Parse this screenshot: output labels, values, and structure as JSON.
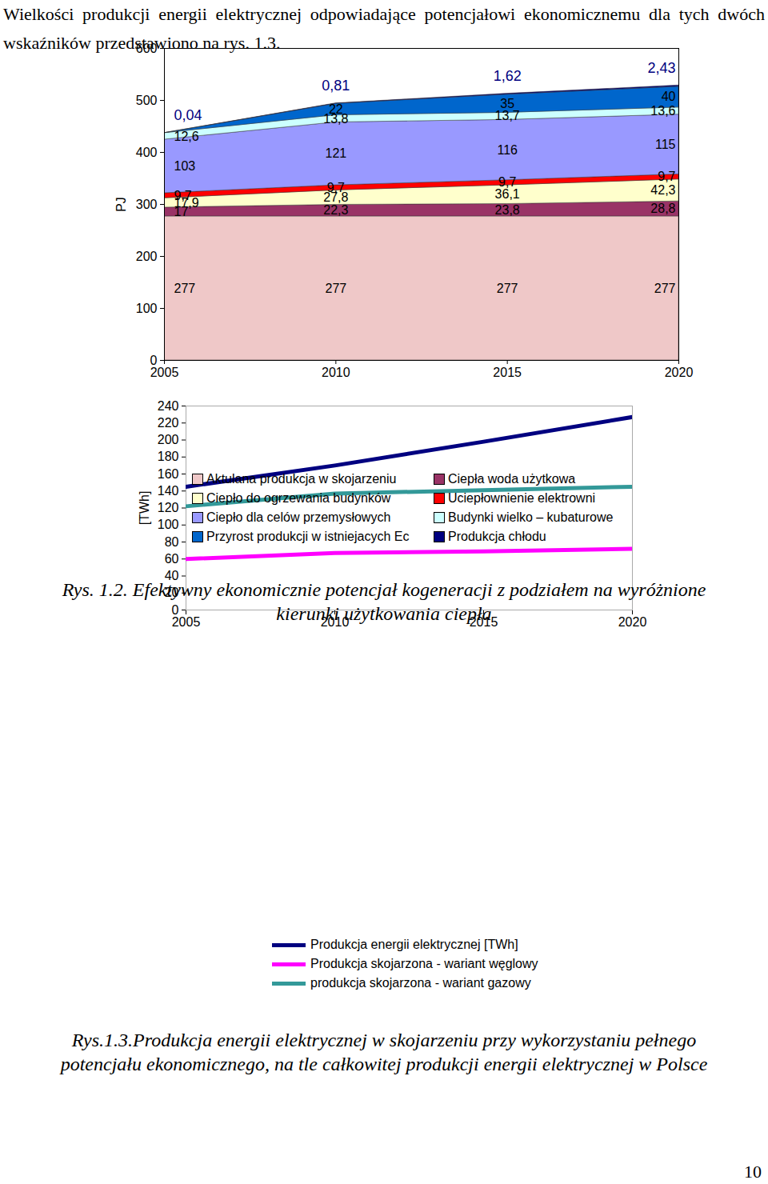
{
  "header_text": "Wielkości produkcji energii elektrycznej odpowiadające potencjałowi ekonomicznemu dla tych dwóch wskaźników przedstawiono na rys. 1.3.",
  "chart_data": [
    {
      "type": "area",
      "stacked": true,
      "data_labels": true,
      "legend": "bottom",
      "grid": false,
      "title": "Rys. 1.2. Efektywny ekonomicznie potencjał kogeneracji z podziałem na wyróżnione kierunki użytkowania ciepła",
      "y_label": "PJ",
      "x": [
        2005,
        2010,
        2015,
        2020
      ],
      "xlim": [
        2005,
        2020
      ],
      "xticks": [
        2005,
        2010,
        2015,
        2020
      ],
      "ylim": [
        0,
        600
      ],
      "yticks": [
        0,
        100,
        200,
        300,
        400,
        500,
        600
      ],
      "series": [
        {
          "name": "Aktulana produkcja w skojarzeniu",
          "color": "#efc8c8",
          "values": [
            277,
            277,
            277,
            277
          ],
          "value_labels": [
            "277",
            "277",
            "277",
            "277"
          ]
        },
        {
          "name": "Ciepła woda użytkowa",
          "color": "#993366",
          "values": [
            17,
            22.3,
            23.8,
            28.8
          ],
          "value_labels": [
            "17",
            "22,3",
            "23,8",
            "28,8"
          ]
        },
        {
          "name": "Ciepło do ogrzewania budynków",
          "color": "#ffffcc",
          "values": [
            17.9,
            27.8,
            36.1,
            42.3
          ],
          "value_labels": [
            "17,9",
            "27,8",
            "36,1",
            "42,3"
          ]
        },
        {
          "name": "Uciepłownienie elektrowni",
          "color": "#ff0000",
          "values": [
            9.7,
            9.7,
            9.7,
            9.7
          ],
          "value_labels": [
            "9,7",
            "9,7",
            "9,7",
            "9,7"
          ]
        },
        {
          "name": "Ciepło dla celów przemysłowych",
          "color": "#9999ff",
          "values": [
            103,
            121,
            116,
            115
          ],
          "value_labels": [
            "103",
            "121",
            "116",
            "115"
          ]
        },
        {
          "name": "Budynki wielko – kubaturowe",
          "color": "#ccffff",
          "values": [
            12.6,
            13.8,
            13.7,
            13.6
          ],
          "value_labels": [
            "12,6",
            "13,8",
            "13,7",
            "13,6"
          ]
        },
        {
          "name": "Przyrost produkcji w istniejacych Ec",
          "color": "#0066cc",
          "values": [
            0,
            22,
            35,
            40
          ],
          "value_labels": [
            null,
            "22",
            "35",
            "40"
          ]
        },
        {
          "name": "Produkcja chłodu",
          "color": "#000080",
          "values": [
            0.04,
            0.81,
            1.62,
            2.43
          ],
          "value_labels": [
            "0,04",
            "0,81",
            "1,62",
            "2,43"
          ]
        }
      ]
    },
    {
      "type": "line",
      "legend": "bottom",
      "grid": false,
      "title": "Rys.1.3.Produkcja energii elektrycznej  w skojarzeniu przy wykorzystaniu pełnego potencjału ekonomicznego, na tle całkowitej produkcji energii elektrycznej w Polsce",
      "y_label": "[TWh]",
      "x": [
        2005,
        2010,
        2015,
        2020
      ],
      "xlim": [
        2005,
        2020
      ],
      "xticks": [
        2005,
        2010,
        2015,
        2020
      ],
      "ylim": [
        0,
        240
      ],
      "yticks": [
        0,
        20,
        40,
        60,
        80,
        100,
        120,
        140,
        160,
        180,
        200,
        220,
        240
      ],
      "series": [
        {
          "name": "Produkcja energii elektrycznej  [TWh]",
          "color": "#000080",
          "values": [
            145,
            170,
            198,
            227
          ]
        },
        {
          "name": "Produkcja skojarzona - wariant węglowy",
          "color": "#ff00ff",
          "values": [
            60,
            67,
            69,
            72
          ]
        },
        {
          "name": "produkcja skojarzona - wariant gazowy",
          "color": "#339999",
          "values": [
            122,
            137,
            141,
            145
          ]
        }
      ]
    }
  ],
  "page_number": "10"
}
